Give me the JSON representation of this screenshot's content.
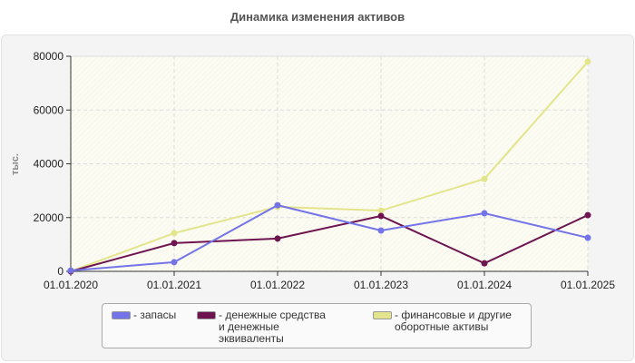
{
  "chart_data": {
    "type": "line",
    "title": "Динамика изменения активов",
    "ylabel": "тыс.",
    "xlabel": "",
    "categories": [
      "01.01.2020",
      "01.01.2021",
      "01.01.2022",
      "01.01.2023",
      "01.01.2024",
      "01.01.2025"
    ],
    "ylim": [
      0,
      80000
    ],
    "yticks": [
      "0",
      "20000",
      "40000",
      "60000",
      "80000"
    ],
    "grid": true,
    "legend_position": "bottom",
    "series": [
      {
        "name": "- запасы",
        "color": "#7474e8",
        "values": [
          300,
          3400,
          24600,
          15200,
          21600,
          12500
        ]
      },
      {
        "name": "- денежные средства и денежные эквиваленты",
        "color": "#6e1450",
        "values": [
          0,
          10500,
          12200,
          20600,
          3000,
          20900
        ]
      },
      {
        "name": "- финансовые и другие оборотные активы",
        "color": "#e4e48c",
        "values": [
          0,
          14200,
          24000,
          22600,
          34400,
          78000
        ]
      }
    ]
  }
}
